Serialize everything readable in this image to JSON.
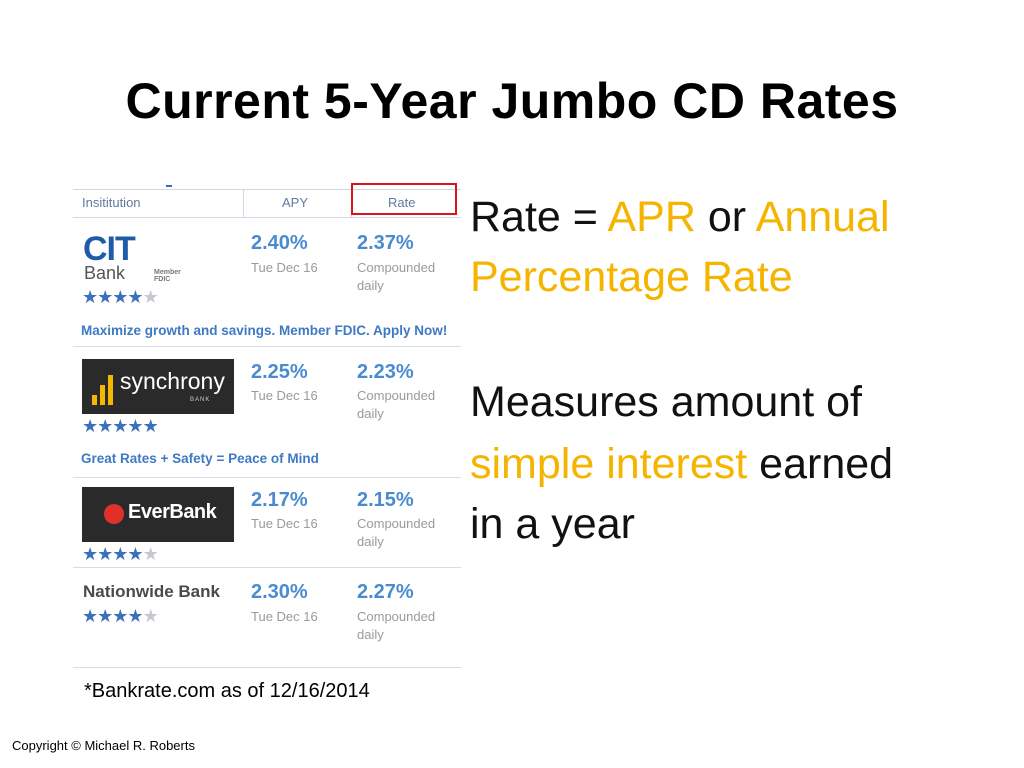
{
  "title": "Current 5-Year Jumbo CD Rates",
  "table": {
    "headers": {
      "institution": "Insititution",
      "apy": "APY",
      "rate": "Rate"
    },
    "rows": [
      {
        "bank": "CIT Bank",
        "logo_word": "CIT",
        "logo_sub": "Bank",
        "logo_badge": "Member FDIC",
        "apy": "2.40%",
        "date": "Tue Dec 16",
        "rate": "2.37%",
        "rate_note_1": "Compounded",
        "rate_note_2": "daily",
        "stars": 4,
        "promo": "Maximize growth and savings. Member FDIC. Apply Now!"
      },
      {
        "bank": "Synchrony Bank",
        "logo_word": "synchrony",
        "logo_sub": "BANK",
        "apy": "2.25%",
        "date": "Tue Dec 16",
        "rate": "2.23%",
        "rate_note_1": "Compounded",
        "rate_note_2": "daily",
        "stars": 5,
        "promo": "Great Rates + Safety = Peace of Mind"
      },
      {
        "bank": "EverBank",
        "logo_word": "EverBank",
        "apy": "2.17%",
        "date": "Tue Dec 16",
        "rate": "2.15%",
        "rate_note_1": "Compounded",
        "rate_note_2": "daily",
        "stars": 4
      },
      {
        "bank": "Nationwide Bank",
        "logo_word": "Nationwide Bank",
        "apy": "2.30%",
        "date": "Tue Dec 16",
        "rate": "2.27%",
        "rate_note_1": "Compounded",
        "rate_note_2": "daily",
        "stars": 4
      }
    ]
  },
  "source": "*Bankrate.com as of 12/16/2014",
  "right": {
    "line1_a": "Rate = ",
    "line1_b": "APR",
    "line1_c": " or ",
    "line1_d": "Annual",
    "line2": "Percentage Rate",
    "line3": "Measures amount of",
    "line4_a": "simple interest",
    "line4_b": " earned",
    "line5": "in a year"
  },
  "copyright": "Copyright © Michael R. Roberts",
  "colors": {
    "highlight": "#f4b400",
    "link_blue": "#4a8bd0",
    "rate_box": "#d9141c"
  }
}
